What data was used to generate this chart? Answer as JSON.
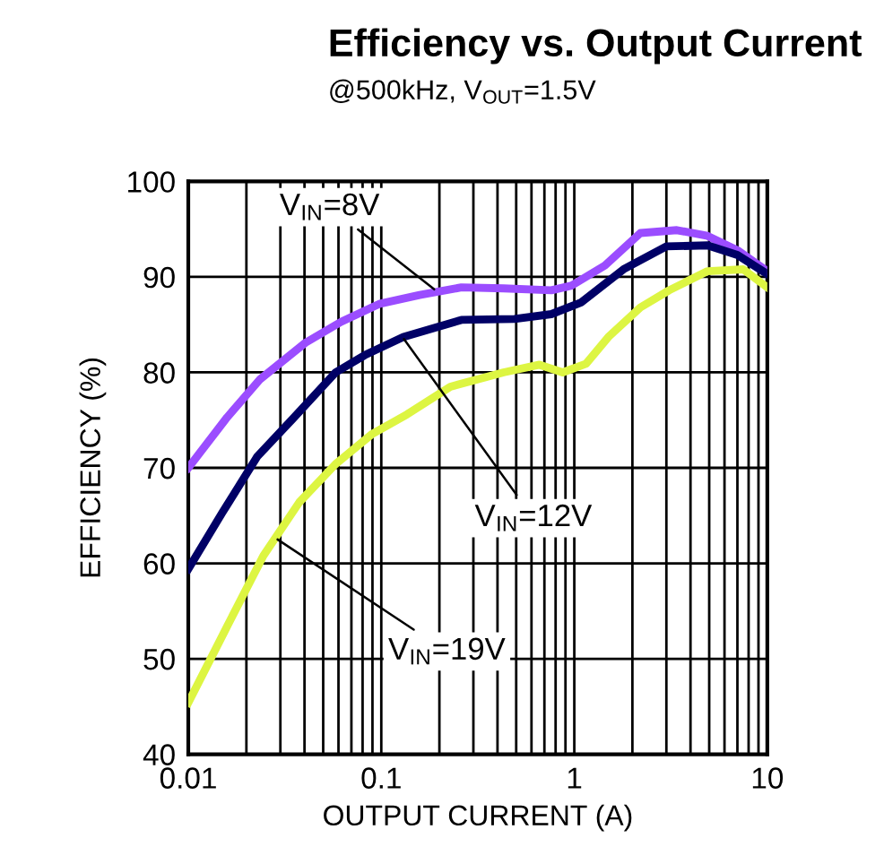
{
  "chart_data": {
    "type": "line",
    "title": "Efficiency vs. Output Current",
    "subtitle": "@500kHz, V$_{OUT}$=1.5V",
    "xlabel": "OUTPUT CURRENT (A)",
    "ylabel": "EFFICIENCY (%)",
    "log": "x",
    "grid": true,
    "legend": false,
    "marker": "none",
    "line_style": "solid",
    "xlim": [
      0.01,
      10
    ],
    "ylim": [
      40,
      100
    ],
    "yticks": [
      40,
      50,
      60,
      70,
      80,
      90,
      100
    ],
    "xticks": [
      0.01,
      {
        "value": 0.02,
        "label": null
      },
      {
        "value": 0.03,
        "label": null
      },
      {
        "value": 0.04,
        "label": null
      },
      {
        "value": 0.05,
        "label": null
      },
      {
        "value": 0.06,
        "label": null
      },
      {
        "value": 0.07,
        "label": null
      },
      {
        "value": 0.08,
        "label": null
      },
      {
        "value": 0.09,
        "label": null
      },
      0.1,
      {
        "value": 0.2,
        "label": null
      },
      {
        "value": 0.3,
        "label": null
      },
      {
        "value": 0.4,
        "label": null
      },
      {
        "value": 0.5,
        "label": null
      },
      {
        "value": 0.6,
        "label": null
      },
      {
        "value": 0.7,
        "label": null
      },
      {
        "value": 0.8,
        "label": null
      },
      {
        "value": 0.9,
        "label": null
      },
      1,
      {
        "value": 2,
        "label": null
      },
      {
        "value": 3,
        "label": null
      },
      {
        "value": 4,
        "label": null
      },
      {
        "value": 5,
        "label": null
      },
      {
        "value": 6,
        "label": null
      },
      {
        "value": 7,
        "label": null
      },
      {
        "value": 8,
        "label": null
      },
      {
        "value": 9,
        "label": null
      },
      10
    ],
    "series": [
      {
        "color": "#9b4dff",
        "x": [
          0.01,
          0.0159,
          0.0236,
          0.0404,
          0.062,
          0.0985,
          0.158,
          0.26,
          0.43,
          0.76,
          0.97,
          1.44,
          2.2,
          3.4,
          4.9,
          7,
          10
        ],
        "values": [
          70,
          75.3,
          79.3,
          83.1,
          85.3,
          87.2,
          88.1,
          88.9,
          88.8,
          88.6,
          89.1,
          91.2,
          94.6,
          94.9,
          94.3,
          92.8,
          90.6
        ]
      },
      {
        "color": "#000066",
        "x": [
          0.01,
          0.015,
          0.0228,
          0.035,
          0.058,
          0.082,
          0.13,
          0.26,
          0.49,
          0.76,
          1.08,
          1.8,
          3.0,
          4.9,
          7,
          10
        ],
        "values": [
          59.4,
          65.3,
          71.2,
          75.2,
          80.0,
          81.8,
          83.7,
          85.5,
          85.6,
          86.1,
          87.3,
          90.8,
          93.2,
          93.3,
          92.3,
          90.3
        ]
      },
      {
        "color": "#ddf542",
        "x": [
          0.01,
          0.0159,
          0.0245,
          0.0376,
          0.058,
          0.089,
          0.136,
          0.228,
          0.43,
          0.66,
          0.87,
          1.15,
          1.5,
          2.2,
          3.1,
          4.9,
          7.5,
          10
        ],
        "values": [
          45.4,
          53.4,
          60.8,
          66.4,
          70.4,
          73.5,
          75.6,
          78.5,
          80,
          80.8,
          80,
          80.9,
          83.7,
          86.8,
          88.6,
          90.6,
          90.8,
          88.9
        ]
      }
    ],
    "annotations": [
      {
        "text": "V$_{IN}$=8V",
        "x": 0.188,
        "y": 88.7
      },
      {
        "text": "V$_{IN}$=12V",
        "x": 0.131,
        "y": 83.5
      },
      {
        "text": "V$_{IN}$=19V",
        "x": 0.029,
        "y": 62.5
      }
    ]
  }
}
